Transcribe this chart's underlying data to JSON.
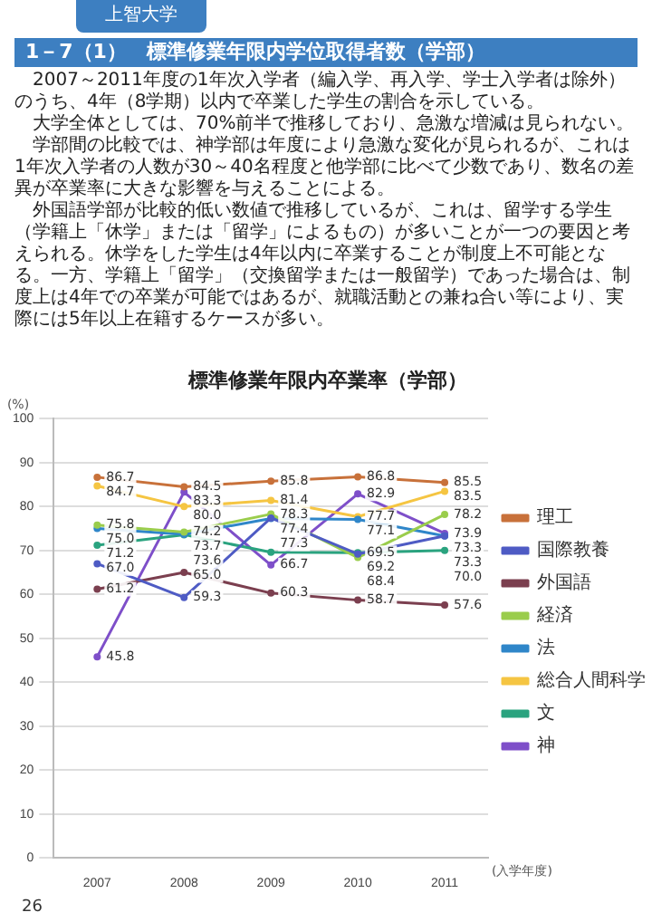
{
  "chart_data": {
    "type": "line",
    "title": "標準修業年限内卒業率（学部）",
    "ylabel": "(%)",
    "xlabel": "(入学年度)",
    "annotations": [
      "上智大学",
      "1－7（1）　標準修業年限内学位取得者数（学部）",
      "2007～2011年度の1年次入学者（編入学、再入学、学士入学者は除外）のうち、4年（8学期）以内で卒業した学生の割合を示している。",
      "大学全体としては、70%前半で推移しており、急激な増減は見られない。",
      "学部間の比較では、神学部は年度により急激な変化が見られるが、これは1年次入学者の人数が30～40名程度と他学部に比べて少数であり、数名の差異が卒業率に大きな影響を与えることによる。",
      "外国語学部が比較的低い数値で推移しているが、これは、留学する学生（学籍上「休学」または「留学」によるもの）が多いことが一つの要因と考えられる。休学をした学生は4年以内に卒業することが制度上不可能となる。一方、学籍上「留学」（交換留学または一般留学）であった場合は、制度上は4年での卒業が可能ではあるが、就職活動との兼ね合い等により、実際には5年以上在籍するケースが多い。",
      "26"
    ],
    "categories": [
      "2007",
      "2008",
      "2009",
      "2010",
      "2011"
    ],
    "series": [
      {
        "name": "理工",
        "color": "#c8713a",
        "values": [
          86.7,
          84.5,
          85.8,
          86.8,
          85.5
        ],
        "value_labels": [
          "86.7",
          "84.5",
          "85.8",
          "86.8",
          "85.5"
        ]
      },
      {
        "name": "国際教養",
        "color": "#4e5bc4",
        "values": [
          67.0,
          59.3,
          77.4,
          69.2,
          73.3
        ],
        "value_labels": [
          "67.0",
          "59.3",
          "77.4",
          "69.2",
          "73.3"
        ]
      },
      {
        "name": "外国語",
        "color": "#7b3f4f",
        "values": [
          61.2,
          65.0,
          60.3,
          58.7,
          57.6
        ],
        "value_labels": [
          "61.2",
          "65.0",
          "60.3",
          "58.7",
          "57.6"
        ]
      },
      {
        "name": "経済",
        "color": "#9acd4c",
        "values": [
          75.8,
          74.2,
          78.3,
          68.4,
          78.2
        ],
        "value_labels": [
          "75.8",
          "74.2",
          "78.3",
          "68.4",
          "78.2"
        ]
      },
      {
        "name": "法",
        "color": "#2f86c9",
        "values": [
          75.0,
          73.7,
          77.3,
          77.1,
          73.3
        ],
        "value_labels": [
          "75.0",
          "73.7",
          "77.3",
          "77.1",
          "73.3"
        ]
      },
      {
        "name": "総合人間科学",
        "color": "#f5c542",
        "values": [
          84.7,
          80.0,
          81.4,
          77.7,
          83.5
        ],
        "value_labels": [
          "84.7",
          "80.0",
          "81.4",
          "77.7",
          "83.5"
        ]
      },
      {
        "name": "文",
        "color": "#2aa37f",
        "values": [
          71.2,
          73.6,
          69.6,
          69.5,
          70.0
        ],
        "value_labels": [
          "71.2",
          "73.6",
          null,
          "69.5",
          "70.0"
        ]
      },
      {
        "name": "神",
        "color": "#7e4fc9",
        "values": [
          45.8,
          83.3,
          66.7,
          82.9,
          73.9
        ],
        "value_labels": [
          "45.8",
          "83.3",
          "66.7",
          "82.9",
          "73.9"
        ]
      }
    ],
    "ylim": [
      0,
      100
    ],
    "yticks": [
      0,
      10,
      20,
      30,
      40,
      50,
      60,
      70,
      80,
      90,
      100
    ],
    "grid": "y",
    "legend": "right",
    "marker": "circle"
  }
}
